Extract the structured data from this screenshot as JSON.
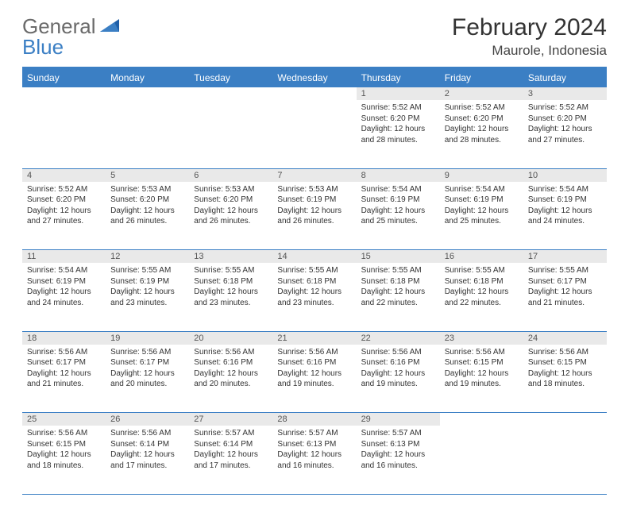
{
  "logo": {
    "part1": "General",
    "part2": "Blue"
  },
  "title": "February 2024",
  "location": "Maurole, Indonesia",
  "weekdays": [
    "Sunday",
    "Monday",
    "Tuesday",
    "Wednesday",
    "Thursday",
    "Friday",
    "Saturday"
  ],
  "colors": {
    "header_bg": "#3b7fc4",
    "header_text": "#ffffff",
    "daynum_bg": "#e9e9e9",
    "border": "#3b7fc4",
    "body_text": "#333333"
  },
  "weeks": [
    [
      null,
      null,
      null,
      null,
      {
        "n": "1",
        "sr": "Sunrise: 5:52 AM",
        "ss": "Sunset: 6:20 PM",
        "d1": "Daylight: 12 hours",
        "d2": "and 28 minutes."
      },
      {
        "n": "2",
        "sr": "Sunrise: 5:52 AM",
        "ss": "Sunset: 6:20 PM",
        "d1": "Daylight: 12 hours",
        "d2": "and 28 minutes."
      },
      {
        "n": "3",
        "sr": "Sunrise: 5:52 AM",
        "ss": "Sunset: 6:20 PM",
        "d1": "Daylight: 12 hours",
        "d2": "and 27 minutes."
      }
    ],
    [
      {
        "n": "4",
        "sr": "Sunrise: 5:52 AM",
        "ss": "Sunset: 6:20 PM",
        "d1": "Daylight: 12 hours",
        "d2": "and 27 minutes."
      },
      {
        "n": "5",
        "sr": "Sunrise: 5:53 AM",
        "ss": "Sunset: 6:20 PM",
        "d1": "Daylight: 12 hours",
        "d2": "and 26 minutes."
      },
      {
        "n": "6",
        "sr": "Sunrise: 5:53 AM",
        "ss": "Sunset: 6:20 PM",
        "d1": "Daylight: 12 hours",
        "d2": "and 26 minutes."
      },
      {
        "n": "7",
        "sr": "Sunrise: 5:53 AM",
        "ss": "Sunset: 6:19 PM",
        "d1": "Daylight: 12 hours",
        "d2": "and 26 minutes."
      },
      {
        "n": "8",
        "sr": "Sunrise: 5:54 AM",
        "ss": "Sunset: 6:19 PM",
        "d1": "Daylight: 12 hours",
        "d2": "and 25 minutes."
      },
      {
        "n": "9",
        "sr": "Sunrise: 5:54 AM",
        "ss": "Sunset: 6:19 PM",
        "d1": "Daylight: 12 hours",
        "d2": "and 25 minutes."
      },
      {
        "n": "10",
        "sr": "Sunrise: 5:54 AM",
        "ss": "Sunset: 6:19 PM",
        "d1": "Daylight: 12 hours",
        "d2": "and 24 minutes."
      }
    ],
    [
      {
        "n": "11",
        "sr": "Sunrise: 5:54 AM",
        "ss": "Sunset: 6:19 PM",
        "d1": "Daylight: 12 hours",
        "d2": "and 24 minutes."
      },
      {
        "n": "12",
        "sr": "Sunrise: 5:55 AM",
        "ss": "Sunset: 6:19 PM",
        "d1": "Daylight: 12 hours",
        "d2": "and 23 minutes."
      },
      {
        "n": "13",
        "sr": "Sunrise: 5:55 AM",
        "ss": "Sunset: 6:18 PM",
        "d1": "Daylight: 12 hours",
        "d2": "and 23 minutes."
      },
      {
        "n": "14",
        "sr": "Sunrise: 5:55 AM",
        "ss": "Sunset: 6:18 PM",
        "d1": "Daylight: 12 hours",
        "d2": "and 23 minutes."
      },
      {
        "n": "15",
        "sr": "Sunrise: 5:55 AM",
        "ss": "Sunset: 6:18 PM",
        "d1": "Daylight: 12 hours",
        "d2": "and 22 minutes."
      },
      {
        "n": "16",
        "sr": "Sunrise: 5:55 AM",
        "ss": "Sunset: 6:18 PM",
        "d1": "Daylight: 12 hours",
        "d2": "and 22 minutes."
      },
      {
        "n": "17",
        "sr": "Sunrise: 5:55 AM",
        "ss": "Sunset: 6:17 PM",
        "d1": "Daylight: 12 hours",
        "d2": "and 21 minutes."
      }
    ],
    [
      {
        "n": "18",
        "sr": "Sunrise: 5:56 AM",
        "ss": "Sunset: 6:17 PM",
        "d1": "Daylight: 12 hours",
        "d2": "and 21 minutes."
      },
      {
        "n": "19",
        "sr": "Sunrise: 5:56 AM",
        "ss": "Sunset: 6:17 PM",
        "d1": "Daylight: 12 hours",
        "d2": "and 20 minutes."
      },
      {
        "n": "20",
        "sr": "Sunrise: 5:56 AM",
        "ss": "Sunset: 6:16 PM",
        "d1": "Daylight: 12 hours",
        "d2": "and 20 minutes."
      },
      {
        "n": "21",
        "sr": "Sunrise: 5:56 AM",
        "ss": "Sunset: 6:16 PM",
        "d1": "Daylight: 12 hours",
        "d2": "and 19 minutes."
      },
      {
        "n": "22",
        "sr": "Sunrise: 5:56 AM",
        "ss": "Sunset: 6:16 PM",
        "d1": "Daylight: 12 hours",
        "d2": "and 19 minutes."
      },
      {
        "n": "23",
        "sr": "Sunrise: 5:56 AM",
        "ss": "Sunset: 6:15 PM",
        "d1": "Daylight: 12 hours",
        "d2": "and 19 minutes."
      },
      {
        "n": "24",
        "sr": "Sunrise: 5:56 AM",
        "ss": "Sunset: 6:15 PM",
        "d1": "Daylight: 12 hours",
        "d2": "and 18 minutes."
      }
    ],
    [
      {
        "n": "25",
        "sr": "Sunrise: 5:56 AM",
        "ss": "Sunset: 6:15 PM",
        "d1": "Daylight: 12 hours",
        "d2": "and 18 minutes."
      },
      {
        "n": "26",
        "sr": "Sunrise: 5:56 AM",
        "ss": "Sunset: 6:14 PM",
        "d1": "Daylight: 12 hours",
        "d2": "and 17 minutes."
      },
      {
        "n": "27",
        "sr": "Sunrise: 5:57 AM",
        "ss": "Sunset: 6:14 PM",
        "d1": "Daylight: 12 hours",
        "d2": "and 17 minutes."
      },
      {
        "n": "28",
        "sr": "Sunrise: 5:57 AM",
        "ss": "Sunset: 6:13 PM",
        "d1": "Daylight: 12 hours",
        "d2": "and 16 minutes."
      },
      {
        "n": "29",
        "sr": "Sunrise: 5:57 AM",
        "ss": "Sunset: 6:13 PM",
        "d1": "Daylight: 12 hours",
        "d2": "and 16 minutes."
      },
      null,
      null
    ]
  ]
}
